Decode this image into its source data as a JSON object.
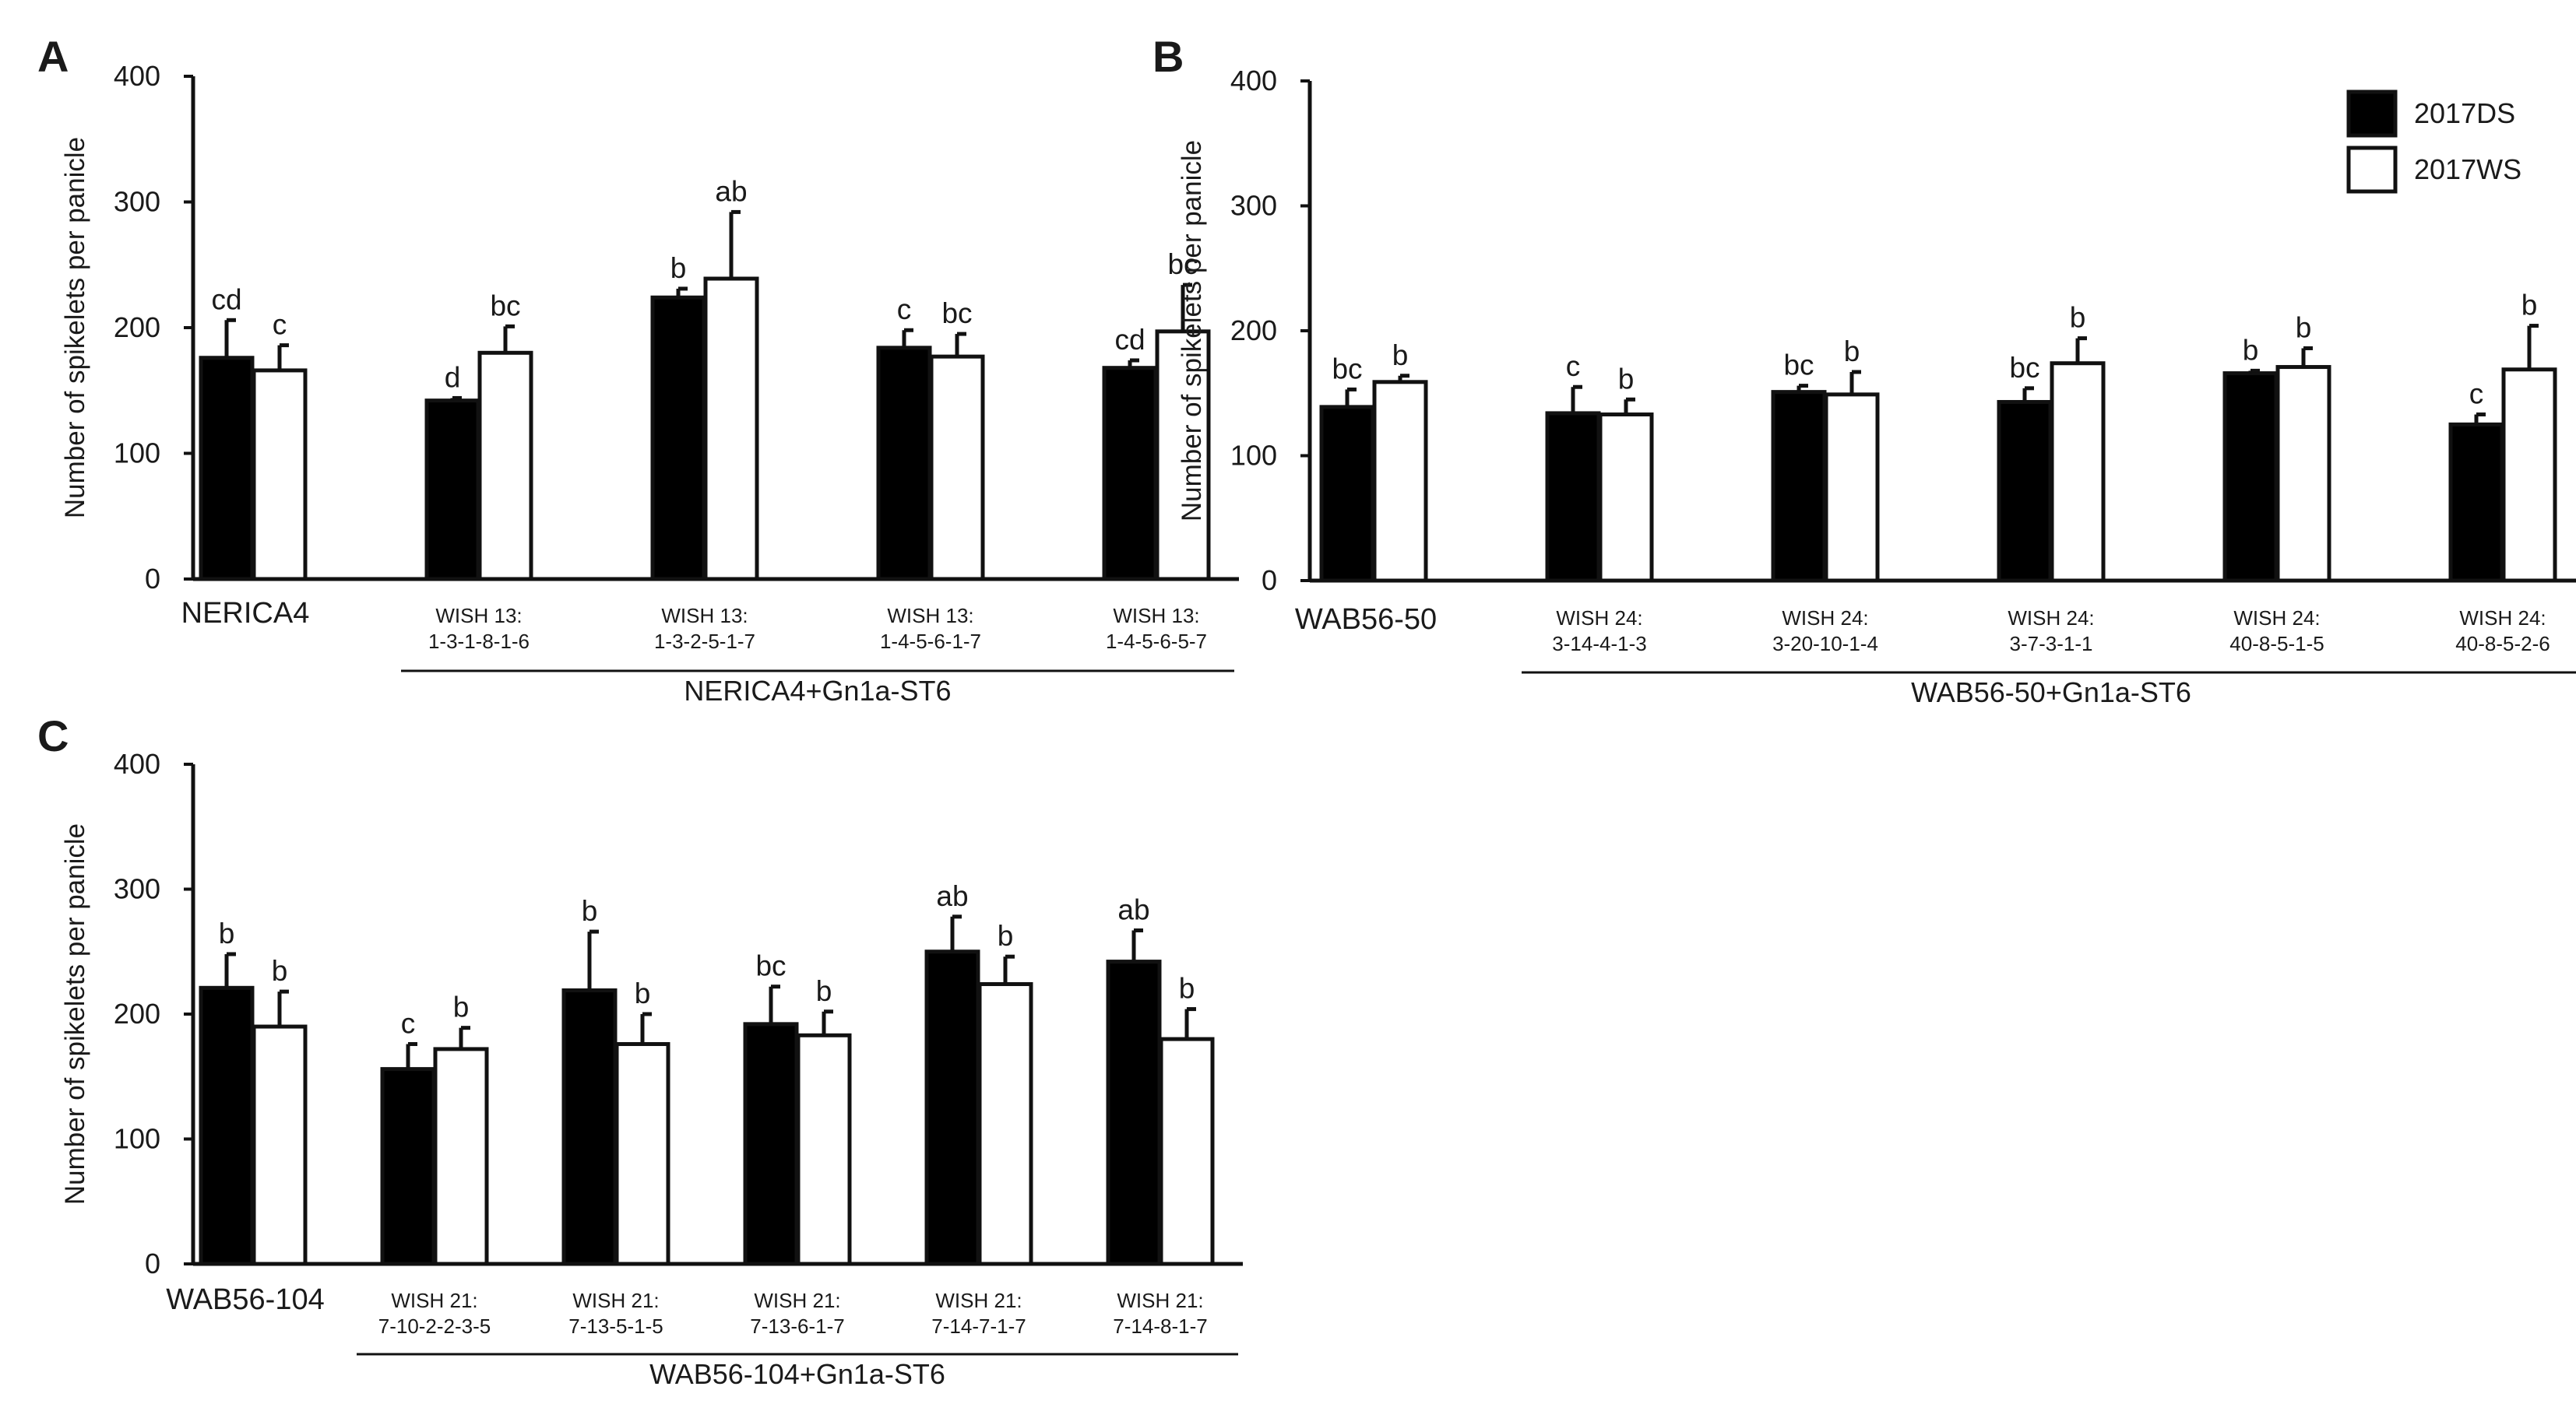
{
  "legend": {
    "series": [
      {
        "name": "2017DS",
        "color": "#000000"
      },
      {
        "name": "2017WS",
        "color": "#ffffff"
      }
    ]
  },
  "chart_data": [
    {
      "type": "bar",
      "panel": "A",
      "ylabel": "Number of spikelets per panicle",
      "ylim": [
        0,
        400
      ],
      "yticks": [
        0,
        100,
        200,
        300,
        400
      ],
      "categories": [
        [
          "NERICA4"
        ],
        [
          "WISH 13:",
          "1-3-1-8-1-6"
        ],
        [
          "WISH 13:",
          "1-3-2-5-1-7"
        ],
        [
          "WISH 13:",
          "1-4-5-6-1-7"
        ],
        [
          "WISH 13:",
          "1-4-5-6-5-7"
        ]
      ],
      "group_label": "NERICA4+Gn1a-ST6",
      "series": [
        {
          "name": "2017DS",
          "values": [
            176,
            142,
            224,
            184,
            168
          ],
          "errors": [
            30,
            2,
            7,
            14,
            6
          ],
          "letters": [
            "cd",
            "d",
            "b",
            "c",
            "cd"
          ]
        },
        {
          "name": "2017WS",
          "values": [
            166,
            180,
            239,
            177,
            197
          ],
          "errors": [
            20,
            21,
            53,
            18,
            37
          ],
          "letters": [
            "c",
            "bc",
            "ab",
            "bc",
            "bc"
          ]
        }
      ]
    },
    {
      "type": "bar",
      "panel": "B",
      "ylabel": "Number of spikelets per panicle",
      "ylim": [
        0,
        400
      ],
      "yticks": [
        0,
        100,
        200,
        300,
        400
      ],
      "categories": [
        [
          "WAB56-50"
        ],
        [
          "WISH 24:",
          "3-14-4-1-3"
        ],
        [
          "WISH 24:",
          "3-20-10-1-4"
        ],
        [
          "WISH 24:",
          "3-7-3-1-1"
        ],
        [
          "WISH 24:",
          "40-8-5-1-5"
        ],
        [
          "WISH 24:",
          "40-8-5-2-6"
        ]
      ],
      "group_label": "WAB56-50+Gn1a-ST6",
      "series": [
        {
          "name": "2017DS",
          "values": [
            139,
            134,
            151,
            143,
            166,
            125
          ],
          "errors": [
            14,
            21,
            5,
            11,
            2,
            8
          ],
          "letters": [
            "bc",
            "c",
            "bc",
            "bc",
            "b",
            "c"
          ]
        },
        {
          "name": "2017WS",
          "values": [
            159,
            133,
            149,
            174,
            171,
            169
          ],
          "errors": [
            5,
            12,
            18,
            20,
            15,
            35
          ],
          "letters": [
            "b",
            "b",
            "b",
            "b",
            "b",
            "b"
          ]
        }
      ]
    },
    {
      "type": "bar",
      "panel": "C",
      "ylabel": "Number of spikelets per panicle",
      "ylim": [
        0,
        400
      ],
      "yticks": [
        0,
        100,
        200,
        300,
        400
      ],
      "categories": [
        [
          "WAB56-104"
        ],
        [
          "WISH 21:",
          "7-10-2-2-3-5"
        ],
        [
          "WISH 21:",
          "7-13-5-1-5"
        ],
        [
          "WISH 21:",
          "7-13-6-1-7"
        ],
        [
          "WISH 21:",
          "7-14-7-1-7"
        ],
        [
          "WISH 21:",
          "7-14-8-1-7"
        ]
      ],
      "group_label": "WAB56-104+Gn1a-ST6",
      "series": [
        {
          "name": "2017DS",
          "values": [
            221,
            156,
            219,
            192,
            250,
            242
          ],
          "errors": [
            27,
            20,
            47,
            30,
            28,
            25
          ],
          "letters": [
            "b",
            "c",
            "b",
            "bc",
            "ab",
            "ab"
          ]
        },
        {
          "name": "2017WS",
          "values": [
            190,
            172,
            176,
            183,
            224,
            180
          ],
          "errors": [
            28,
            17,
            24,
            19,
            22,
            24
          ],
          "letters": [
            "b",
            "b",
            "b",
            "b",
            "b",
            "b"
          ]
        }
      ]
    }
  ]
}
